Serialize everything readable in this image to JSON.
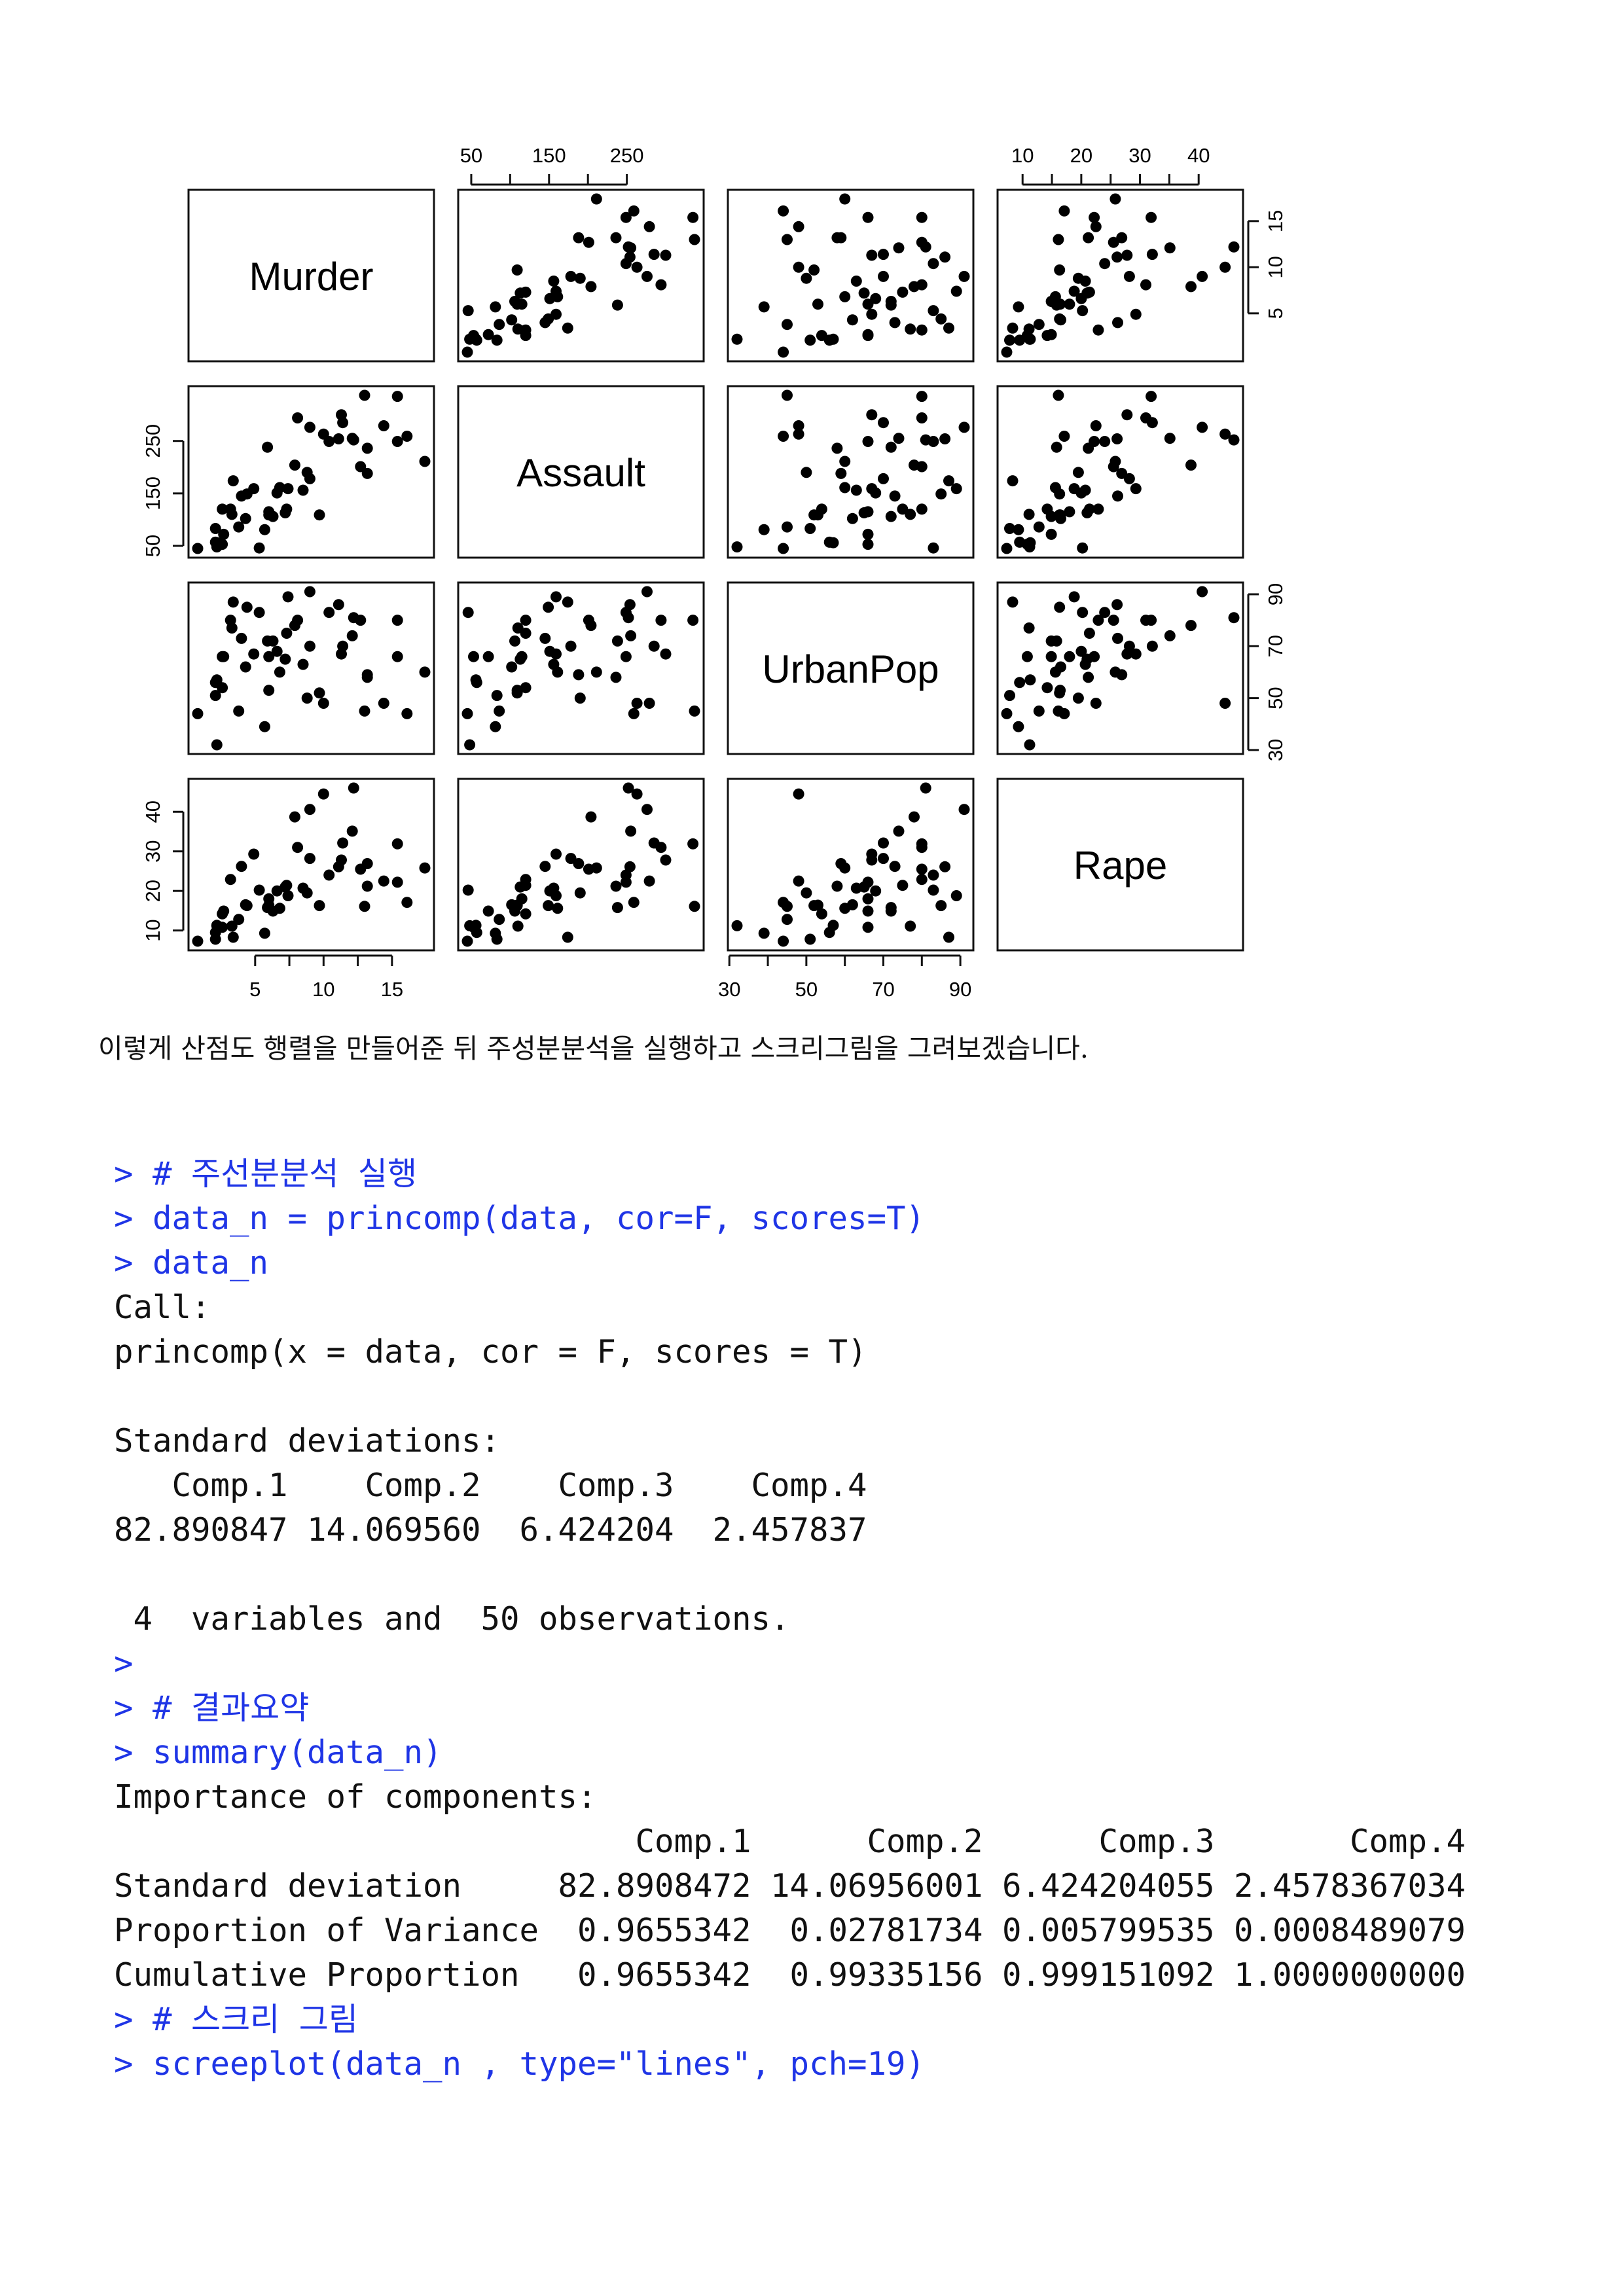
{
  "pairs_plot": {
    "variables": [
      "Murder",
      "Assault",
      "UrbanPop",
      "Rape"
    ],
    "axes": {
      "Murder": {
        "ticks": [
          5,
          10,
          15
        ],
        "range": [
          0.8,
          17.4
        ]
      },
      "Assault": {
        "ticks": [
          50,
          150,
          250
        ],
        "range": [
          45,
          337
        ]
      },
      "UrbanPop": {
        "ticks": [
          30,
          50,
          70,
          90
        ],
        "range": [
          32,
          91
        ]
      },
      "Rape": {
        "ticks": [
          10,
          20,
          30,
          40
        ],
        "range": [
          7.3,
          46
        ]
      }
    }
  },
  "chart_data": {
    "type": "scatter",
    "variables": [
      "Murder",
      "Assault",
      "UrbanPop",
      "Rape"
    ],
    "observations": [
      [
        13.2,
        236,
        58,
        21.2
      ],
      [
        10.0,
        263,
        48,
        44.5
      ],
      [
        8.1,
        294,
        80,
        31.0
      ],
      [
        8.8,
        190,
        50,
        19.5
      ],
      [
        9.0,
        276,
        91,
        40.6
      ],
      [
        7.9,
        204,
        78,
        38.7
      ],
      [
        3.3,
        110,
        77,
        11.1
      ],
      [
        5.9,
        238,
        72,
        15.8
      ],
      [
        15.4,
        335,
        80,
        31.9
      ],
      [
        17.4,
        211,
        60,
        25.8
      ],
      [
        5.3,
        46,
        83,
        20.2
      ],
      [
        2.6,
        120,
        54,
        14.2
      ],
      [
        10.4,
        249,
        83,
        24.0
      ],
      [
        7.2,
        113,
        65,
        21.0
      ],
      [
        2.2,
        56,
        57,
        11.3
      ],
      [
        6.0,
        115,
        66,
        18.0
      ],
      [
        9.7,
        109,
        52,
        16.3
      ],
      [
        15.4,
        249,
        66,
        22.2
      ],
      [
        2.1,
        83,
        51,
        7.8
      ],
      [
        11.3,
        300,
        67,
        27.8
      ],
      [
        4.4,
        149,
        85,
        16.3
      ],
      [
        12.1,
        255,
        74,
        35.1
      ],
      [
        2.7,
        72,
        66,
        14.9
      ],
      [
        16.1,
        259,
        44,
        17.1
      ],
      [
        9.0,
        178,
        70,
        28.2
      ],
      [
        6.0,
        109,
        53,
        16.4
      ],
      [
        4.3,
        102,
        62,
        16.5
      ],
      [
        12.2,
        252,
        81,
        46.0
      ],
      [
        2.1,
        57,
        56,
        9.5
      ],
      [
        7.4,
        159,
        89,
        18.8
      ],
      [
        11.4,
        285,
        70,
        32.1
      ],
      [
        11.1,
        254,
        86,
        26.1
      ],
      [
        13.0,
        337,
        45,
        16.1
      ],
      [
        0.8,
        45,
        44,
        7.3
      ],
      [
        7.3,
        120,
        75,
        21.4
      ],
      [
        6.6,
        151,
        68,
        20.0
      ],
      [
        4.9,
        159,
        67,
        29.3
      ],
      [
        6.3,
        106,
        72,
        14.9
      ],
      [
        3.4,
        174,
        87,
        8.3
      ],
      [
        14.4,
        279,
        48,
        22.5
      ],
      [
        3.8,
        86,
        45,
        12.8
      ],
      [
        13.2,
        188,
        59,
        26.9
      ],
      [
        12.7,
        201,
        80,
        25.5
      ],
      [
        3.2,
        120,
        80,
        22.9
      ],
      [
        2.2,
        48,
        32,
        11.2
      ],
      [
        8.5,
        156,
        63,
        20.7
      ],
      [
        4.0,
        145,
        73,
        26.2
      ],
      [
        5.7,
        81,
        39,
        9.3
      ],
      [
        2.6,
        53,
        66,
        10.8
      ],
      [
        6.8,
        161,
        60,
        15.6
      ]
    ]
  },
  "caption": "이렇게 산점도 행렬을 만들어준 뒤 주성분분석을 실행하고 스크리그림을 그려보겠습니다.",
  "console": {
    "lines": [
      {
        "kind": "in",
        "text": "> # 주선분분석 실행"
      },
      {
        "kind": "in",
        "text": "> data_n = princomp(data, cor=F, scores=T)"
      },
      {
        "kind": "in",
        "text": "> data_n"
      },
      {
        "kind": "out",
        "text": "Call:"
      },
      {
        "kind": "out",
        "text": "princomp(x = data, cor = F, scores = T)"
      },
      {
        "kind": "blank",
        "text": ""
      },
      {
        "kind": "out",
        "text": "Standard deviations:"
      },
      {
        "kind": "out",
        "text": "   Comp.1    Comp.2    Comp.3    Comp.4"
      },
      {
        "kind": "out",
        "text": "82.890847 14.069560  6.424204  2.457837"
      },
      {
        "kind": "blank",
        "text": ""
      },
      {
        "kind": "out",
        "text": " 4  variables and  50 observations."
      },
      {
        "kind": "in",
        "text": ">"
      },
      {
        "kind": "in",
        "text": "> # 결과요약"
      },
      {
        "kind": "in",
        "text": "> summary(data_n)"
      },
      {
        "kind": "out",
        "text": "Importance of components:"
      },
      {
        "kind": "out",
        "text": "                           Comp.1      Comp.2      Comp.3       Comp.4"
      },
      {
        "kind": "out",
        "text": "Standard deviation     82.8908472 14.06956001 6.424204055 2.4578367034"
      },
      {
        "kind": "out",
        "text": "Proportion of Variance  0.9655342  0.02781734 0.005799535 0.0008489079"
      },
      {
        "kind": "out",
        "text": "Cumulative Proportion   0.9655342  0.99335156 0.999151092 1.0000000000"
      },
      {
        "kind": "in",
        "text": "> # 스크리 그림"
      },
      {
        "kind": "in",
        "text": "> screeplot(data_n , type=\"lines\", pch=19)"
      }
    ]
  }
}
